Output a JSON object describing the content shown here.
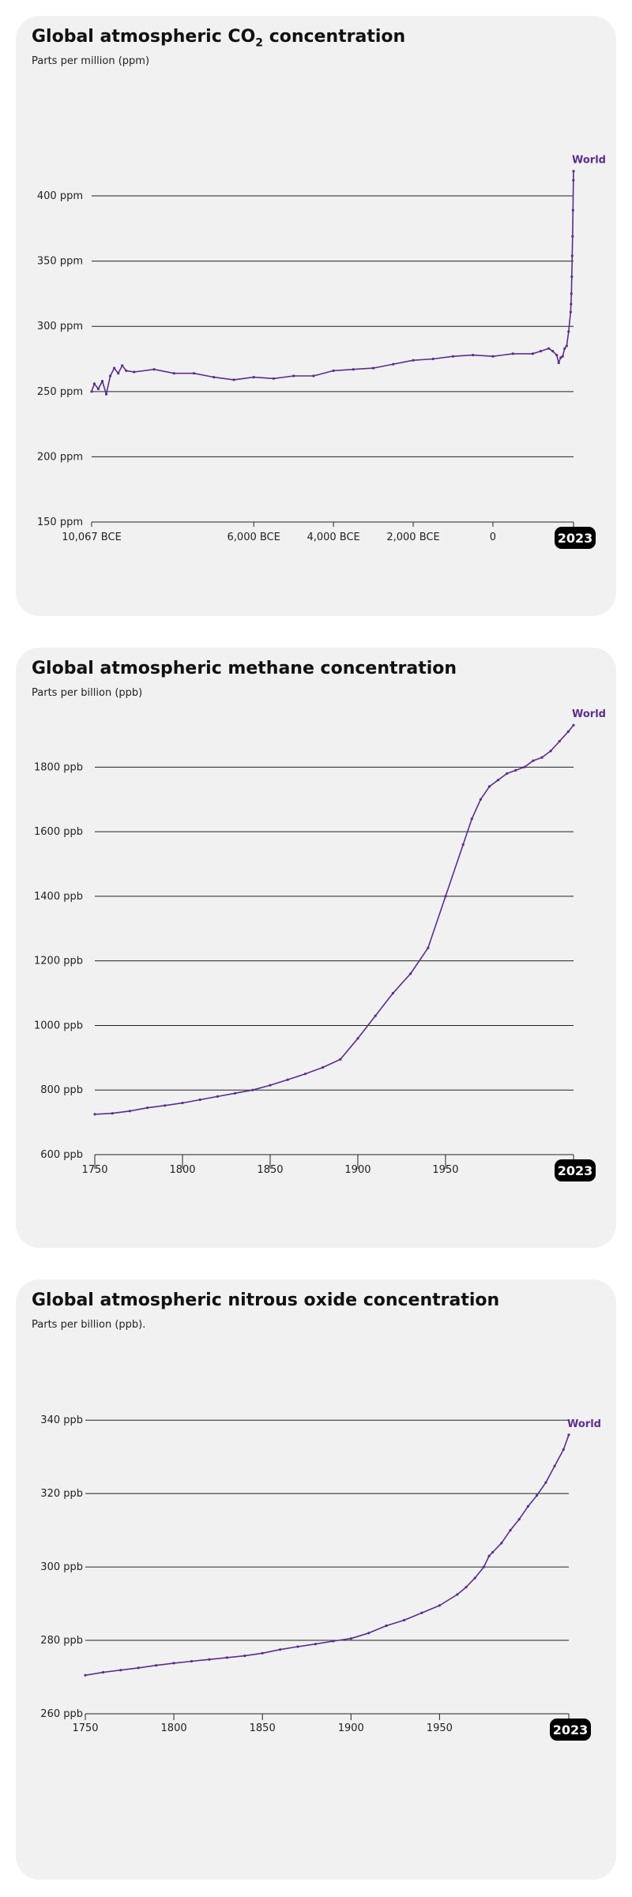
{
  "colors": {
    "series": "#5b2d8e",
    "background": "#f1f1f1",
    "grid": "#222222",
    "badge": "#000000"
  },
  "chart_data": [
    {
      "type": "line",
      "title_main": "Global atmospheric CO",
      "title_sub": "2",
      "title_rest": " concentration",
      "subtitle": "Parts per million (ppm)",
      "ylim": [
        150,
        420
      ],
      "xlim": [
        -10067,
        2023
      ],
      "y_ticks": [
        150,
        200,
        250,
        300,
        350,
        400
      ],
      "y_tick_labels": [
        "150 ppm",
        "200 ppm",
        "250 ppm",
        "300 ppm",
        "350 ppm",
        "400 ppm"
      ],
      "x_ticks": [
        -10067,
        -6000,
        -4000,
        -2000,
        0
      ],
      "x_tick_labels": [
        "10,067 BCE",
        "6,000 BCE",
        "4,000 BCE",
        "2,000 BCE",
        "0"
      ],
      "last_label": "2023",
      "grid": true,
      "series": [
        {
          "name": "World",
          "x": [
            -10067,
            -10000,
            -9900,
            -9800,
            -9700,
            -9600,
            -9500,
            -9400,
            -9300,
            -9200,
            -9000,
            -8500,
            -8000,
            -7500,
            -7000,
            -6500,
            -6000,
            -5500,
            -5000,
            -4500,
            -4000,
            -3500,
            -3000,
            -2500,
            -2000,
            -1500,
            -1000,
            -500,
            0,
            500,
            1000,
            1200,
            1400,
            1500,
            1600,
            1650,
            1700,
            1750,
            1800,
            1850,
            1900,
            1950,
            1960,
            1970,
            1980,
            1990,
            2000,
            2010,
            2020,
            2023
          ],
          "y": [
            250,
            256,
            252,
            258,
            248,
            262,
            268,
            264,
            270,
            266,
            265,
            267,
            264,
            264,
            261,
            259,
            261,
            260,
            262,
            262,
            266,
            267,
            268,
            271,
            274,
            275,
            277,
            278,
            277,
            279,
            279,
            281,
            283,
            281,
            278,
            272,
            276,
            277,
            283,
            285,
            296,
            311,
            317,
            325,
            338,
            354,
            369,
            389,
            412,
            419
          ]
        }
      ]
    },
    {
      "type": "line",
      "title": "Global atmospheric methane concentration",
      "subtitle": "Parts per billion (ppb)",
      "ylim": [
        600,
        1950
      ],
      "xlim": [
        1750,
        2023
      ],
      "y_ticks": [
        600,
        800,
        1000,
        1200,
        1400,
        1600,
        1800
      ],
      "y_tick_labels": [
        "600 ppb",
        "800 ppb",
        "1000 ppb",
        "1200 ppb",
        "1400 ppb",
        "1600 ppb",
        "1800 ppb"
      ],
      "x_ticks": [
        1750,
        1800,
        1850,
        1900,
        1950
      ],
      "x_tick_labels": [
        "1750",
        "1800",
        "1850",
        "1900",
        "1950"
      ],
      "last_label": "2023",
      "grid": true,
      "series": [
        {
          "name": "World",
          "x": [
            1750,
            1760,
            1770,
            1780,
            1790,
            1800,
            1810,
            1820,
            1830,
            1840,
            1850,
            1860,
            1870,
            1880,
            1890,
            1900,
            1910,
            1920,
            1930,
            1940,
            1950,
            1960,
            1965,
            1970,
            1975,
            1980,
            1985,
            1990,
            1995,
            2000,
            2005,
            2010,
            2015,
            2020,
            2023
          ],
          "y": [
            725,
            728,
            735,
            745,
            752,
            760,
            770,
            780,
            790,
            800,
            815,
            832,
            850,
            870,
            895,
            960,
            1030,
            1100,
            1160,
            1240,
            1400,
            1560,
            1640,
            1700,
            1740,
            1760,
            1780,
            1790,
            1800,
            1820,
            1830,
            1850,
            1880,
            1910,
            1930
          ]
        }
      ]
    },
    {
      "type": "line",
      "title": "Global atmospheric nitrous oxide concentration",
      "subtitle": "Parts per billion (ppb).",
      "ylim": [
        260,
        345
      ],
      "xlim": [
        1750,
        2023
      ],
      "y_ticks": [
        260,
        280,
        300,
        320,
        340
      ],
      "y_tick_labels": [
        "260 ppb",
        "280 ppb",
        "300 ppb",
        "320 ppb",
        "340 ppb"
      ],
      "x_ticks": [
        1750,
        1800,
        1850,
        1900,
        1950
      ],
      "x_tick_labels": [
        "1750",
        "1800",
        "1850",
        "1900",
        "1950"
      ],
      "last_label": "2023",
      "grid": true,
      "series": [
        {
          "name": "World",
          "x": [
            1750,
            1760,
            1770,
            1780,
            1790,
            1800,
            1810,
            1820,
            1830,
            1840,
            1850,
            1860,
            1870,
            1880,
            1890,
            1900,
            1910,
            1920,
            1930,
            1940,
            1950,
            1960,
            1965,
            1970,
            1975,
            1978,
            1980,
            1985,
            1990,
            1995,
            2000,
            2005,
            2010,
            2015,
            2020,
            2023
          ],
          "y": [
            270.5,
            271.3,
            271.9,
            272.5,
            273.2,
            273.8,
            274.3,
            274.8,
            275.3,
            275.8,
            276.5,
            277.5,
            278.3,
            279.0,
            279.8,
            280.5,
            282.0,
            284.0,
            285.5,
            287.5,
            289.5,
            292.5,
            294.5,
            297.0,
            300.0,
            303.0,
            304.0,
            306.5,
            310.0,
            313.0,
            316.5,
            319.5,
            323.0,
            327.5,
            332.0,
            336.0
          ]
        }
      ]
    }
  ]
}
